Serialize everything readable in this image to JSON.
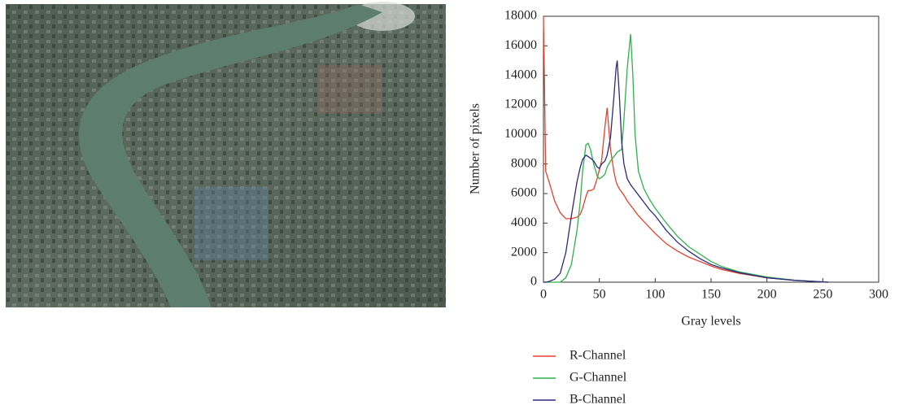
{
  "chart_data": {
    "type": "line",
    "xlabel": "Gray levels",
    "ylabel": "Number of pixels",
    "x": [
      0,
      2,
      5,
      10,
      15,
      20,
      25,
      30,
      33,
      35,
      38,
      40,
      42,
      45,
      48,
      50,
      52,
      55,
      57,
      60,
      63,
      65,
      66,
      68,
      70,
      72,
      75,
      78,
      80,
      82,
      85,
      90,
      95,
      100,
      110,
      120,
      130,
      140,
      150,
      160,
      175,
      200,
      225,
      250,
      255
    ],
    "series": [
      {
        "name": "R-Channel",
        "color": "#e8402a",
        "values": [
          18000,
          7500,
          6800,
          5500,
          4700,
          4300,
          4300,
          4400,
          4600,
          5000,
          5800,
          6200,
          6200,
          6300,
          7000,
          7600,
          8200,
          10500,
          11800,
          9000,
          7500,
          6800,
          6600,
          6300,
          6100,
          5900,
          5500,
          5200,
          5000,
          4800,
          4500,
          4100,
          3700,
          3300,
          2600,
          2100,
          1700,
          1400,
          1100,
          850,
          600,
          300,
          130,
          20,
          0
        ]
      },
      {
        "name": "G-Channel",
        "color": "#2db34a",
        "values": [
          0,
          0,
          0,
          0,
          0,
          300,
          1200,
          3500,
          5500,
          7500,
          9300,
          9400,
          9000,
          8000,
          7200,
          7000,
          7100,
          7300,
          7800,
          8200,
          8500,
          8700,
          8800,
          8900,
          9000,
          11000,
          14500,
          16800,
          14000,
          10000,
          7500,
          6300,
          5600,
          5000,
          4000,
          3100,
          2400,
          1900,
          1400,
          1050,
          700,
          350,
          130,
          20,
          0
        ]
      },
      {
        "name": "B-Channel",
        "color": "#2b2a7e",
        "values": [
          0,
          0,
          50,
          200,
          600,
          2000,
          4500,
          6800,
          7800,
          8300,
          8600,
          8500,
          8400,
          8200,
          7800,
          7700,
          8000,
          8200,
          8600,
          9800,
          12500,
          14500,
          15000,
          12500,
          9500,
          8000,
          7000,
          6600,
          6400,
          6200,
          5900,
          5400,
          4900,
          4500,
          3500,
          2700,
          2100,
          1600,
          1200,
          950,
          650,
          300,
          120,
          20,
          0
        ]
      }
    ],
    "xlim": [
      0,
      300
    ],
    "xticks": [
      0,
      50,
      100,
      150,
      200,
      250,
      300
    ],
    "ylim": [
      0,
      18000
    ],
    "yticks": [
      0,
      2000,
      4000,
      6000,
      8000,
      10000,
      12000,
      14000,
      16000,
      18000
    ]
  }
}
